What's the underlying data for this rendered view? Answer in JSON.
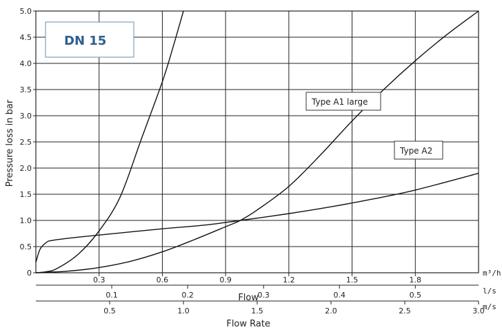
{
  "badge": {
    "text": "DN 15",
    "color": "#2e5f8e",
    "border_color": "#7f9fbf"
  },
  "chart_data": {
    "type": "line",
    "ylabel": "Pressure loss in bar",
    "ylim": [
      0,
      5
    ],
    "yticks": [
      "0",
      "0.5",
      "1.0",
      "1.5",
      "2.0",
      "2.5",
      "3.0",
      "3.5",
      "4.0",
      "4.5",
      "5.0"
    ],
    "grid": true,
    "x_axes": [
      {
        "unit": "m³/h",
        "range": [
          0,
          2.1
        ],
        "ticks": [
          0.3,
          0.6,
          0.9,
          1.2,
          1.5,
          1.8
        ],
        "tick_labels": [
          "0.3",
          "0.6",
          "0.9",
          "1.2",
          "1.5",
          "1.8"
        ]
      },
      {
        "unit": "l/s",
        "title": "Flow",
        "range": [
          0,
          0.5833
        ],
        "ticks": [
          0.1,
          0.2,
          0.3,
          0.4,
          0.5
        ],
        "tick_labels": [
          "0.1",
          "0.2",
          "0.3",
          "0.4",
          "0.5"
        ]
      },
      {
        "unit": "m/s",
        "title": "Flow Rate",
        "range": [
          0,
          3.0
        ],
        "ticks": [
          0.5,
          1.0,
          1.5,
          2.0,
          2.5,
          3.0
        ],
        "tick_labels": [
          "0.5",
          "1.0",
          "1.5",
          "2.0",
          "2.5",
          "3.0"
        ]
      }
    ],
    "series": [
      {
        "name": "",
        "x": [
          0,
          0.05,
          0.1,
          0.2,
          0.3,
          0.4,
          0.5,
          0.6,
          0.65,
          0.7
        ],
        "y": [
          0,
          0.02,
          0.08,
          0.35,
          0.8,
          1.45,
          2.55,
          3.65,
          4.3,
          5.0
        ]
      },
      {
        "name": "Type A1 large",
        "x": [
          0,
          0.15,
          0.3,
          0.45,
          0.6,
          0.75,
          0.9,
          0.97,
          1.05,
          1.2,
          1.35,
          1.5,
          1.65,
          1.8,
          1.95,
          2.1
        ],
        "y": [
          0,
          0.03,
          0.1,
          0.22,
          0.4,
          0.63,
          0.88,
          1.0,
          1.2,
          1.65,
          2.25,
          2.9,
          3.5,
          4.05,
          4.55,
          5.0
        ]
      },
      {
        "name": "Type A2",
        "x": [
          0,
          0.02,
          0.05,
          0.08,
          0.2,
          0.4,
          0.6,
          0.8,
          0.97,
          1.2,
          1.4,
          1.6,
          1.8,
          2.1
        ],
        "y": [
          0.2,
          0.45,
          0.58,
          0.62,
          0.68,
          0.76,
          0.84,
          0.91,
          1.0,
          1.13,
          1.26,
          1.41,
          1.58,
          1.9
        ]
      }
    ]
  }
}
